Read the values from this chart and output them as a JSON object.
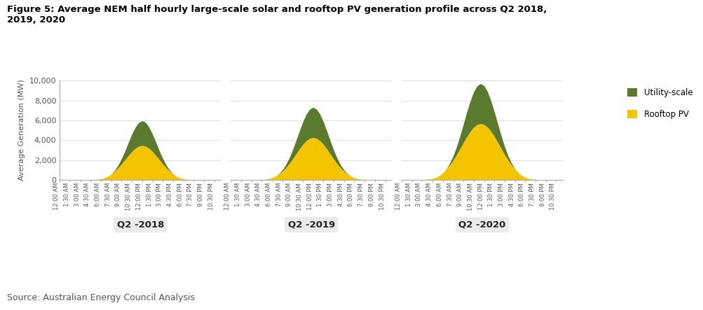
{
  "title": "Figure 5: Average NEM half hourly large-scale solar and rooftop PV generation profile across Q2 2018,\n2019, 2020",
  "source": "Source: Australian Energy Council Analysis",
  "ylabel": "Average Generation (MW)",
  "ylim": [
    0,
    10000
  ],
  "yticks": [
    0,
    2000,
    4000,
    6000,
    8000,
    10000
  ],
  "color_utility": "#5a7a2e",
  "color_rooftop": "#f5c400",
  "quarters": [
    "Q2 -2018",
    "Q2 -2019",
    "Q2 -2020"
  ],
  "time_labels": [
    "12:00 AM",
    "1:30 AM",
    "3:00 AM",
    "4:30 AM",
    "6:00 AM",
    "7:30 AM",
    "9:00 AM",
    "10:30 AM",
    "12:00 PM",
    "1:30 PM",
    "3:00 PM",
    "4:30 PM",
    "6:00 PM",
    "7:30 PM",
    "9:00 PM",
    "10:30 PM"
  ],
  "n_points": 48,
  "peaks_total_2018": 5950,
  "peaks_total_2019": 7300,
  "peaks_total_2020": 9700,
  "peaks_rooftop_2018": 3450,
  "peaks_rooftop_2019": 4250,
  "peaks_rooftop_2020": 5650,
  "peak_time_2018": 24,
  "peak_time_2019": 24,
  "peak_time_2020": 23,
  "sigma_total_2018": 4.2,
  "sigma_total_2019": 4.5,
  "sigma_total_2020": 4.8,
  "sigma_rooftop_2018": 4.8,
  "sigma_rooftop_2019": 5.0,
  "sigma_rooftop_2020": 5.5,
  "background_color": "#ffffff",
  "grid_color": "#e0e0e0",
  "text_color": "#555555",
  "title_color": "#000000"
}
